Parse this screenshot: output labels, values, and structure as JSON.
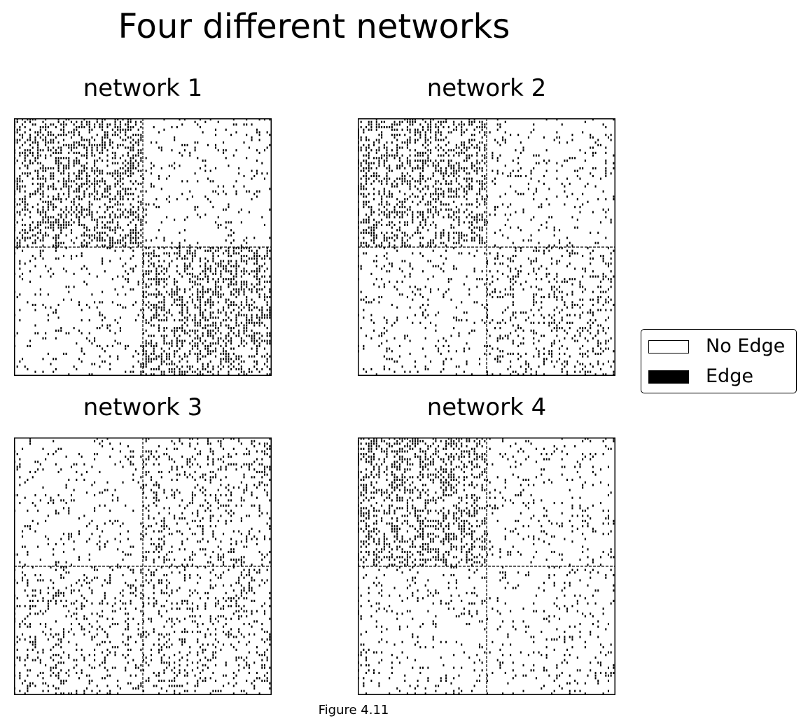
{
  "figure": {
    "title": "Four different networks",
    "caption": "Figure 4.11"
  },
  "legend": {
    "entries": [
      {
        "label": "No Edge",
        "color": "#ffffff"
      },
      {
        "label": "Edge",
        "color": "#000000"
      }
    ]
  },
  "chart_data": [
    {
      "type": "heatmap",
      "title": "network 1",
      "n_nodes": 100,
      "community_split": 50,
      "block_edge_density": [
        [
          0.4,
          0.1
        ],
        [
          0.1,
          0.4
        ]
      ],
      "grid": false
    },
    {
      "type": "heatmap",
      "title": "network 2",
      "n_nodes": 100,
      "community_split": 50,
      "block_edge_density": [
        [
          0.4,
          0.1
        ],
        [
          0.1,
          0.2
        ]
      ],
      "grid": false
    },
    {
      "type": "heatmap",
      "title": "network 3",
      "n_nodes": 100,
      "community_split": 50,
      "block_edge_density": [
        [
          0.1,
          0.2
        ],
        [
          0.2,
          0.2
        ]
      ],
      "grid": false
    },
    {
      "type": "heatmap",
      "title": "network 4",
      "n_nodes": 100,
      "community_split": 50,
      "block_edge_density": [
        [
          0.4,
          0.1
        ],
        [
          0.1,
          0.1
        ]
      ],
      "grid": false
    }
  ]
}
